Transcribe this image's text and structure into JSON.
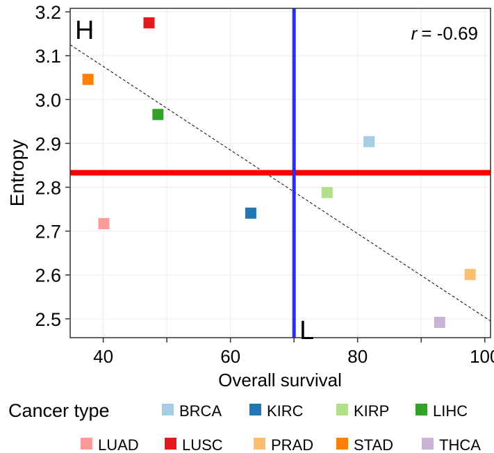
{
  "chart_data": {
    "type": "scatter",
    "xlabel": "Overall survival",
    "ylabel": "Entropy",
    "xlim": [
      34.8,
      100.9
    ],
    "ylim": [
      2.457,
      3.208
    ],
    "x_ticks": [
      40,
      60,
      80,
      100
    ],
    "x_minor_ticks": [
      50,
      70,
      90
    ],
    "y_ticks": [
      2.5,
      2.6,
      2.7,
      2.8,
      2.9,
      3.0,
      3.1,
      3.2
    ],
    "y_tick_labels": [
      "2.5",
      "2.6",
      "2.7",
      "2.8",
      "2.9",
      "3.0",
      "3.1",
      "3.2"
    ],
    "grid": true,
    "annotation": {
      "r_symbol": "r",
      "r_value": "= -0.69"
    },
    "quadrant_labels": {
      "high": "H",
      "low": "L"
    },
    "hline": {
      "y": 2.833,
      "color": "#ff0000"
    },
    "vline": {
      "x": 70,
      "color": "#2b2bff"
    },
    "trend_line": {
      "style": "dashed",
      "points": [
        [
          34.8,
          3.125
        ],
        [
          100.9,
          2.495
        ]
      ]
    },
    "legend": {
      "title": "Cancer type",
      "placement": "bottom"
    },
    "series": [
      {
        "name": "BRCA",
        "color": "#a6cee3",
        "x": 81.8,
        "y": 2.904
      },
      {
        "name": "KIRC",
        "color": "#1f78b4",
        "x": 63.2,
        "y": 2.741
      },
      {
        "name": "KIRP",
        "color": "#b2df8a",
        "x": 75.2,
        "y": 2.788
      },
      {
        "name": "LIHC",
        "color": "#33a02c",
        "x": 48.6,
        "y": 2.966
      },
      {
        "name": "LUAD",
        "color": "#fb9a99",
        "x": 40.1,
        "y": 2.717
      },
      {
        "name": "LUSC",
        "color": "#e31a1c",
        "x": 47.2,
        "y": 3.175
      },
      {
        "name": "PRAD",
        "color": "#fdbf6f",
        "x": 97.7,
        "y": 2.601
      },
      {
        "name": "STAD",
        "color": "#ff7f00",
        "x": 37.6,
        "y": 3.046
      },
      {
        "name": "THCA",
        "color": "#cab2d6",
        "x": 92.9,
        "y": 2.492
      }
    ]
  }
}
